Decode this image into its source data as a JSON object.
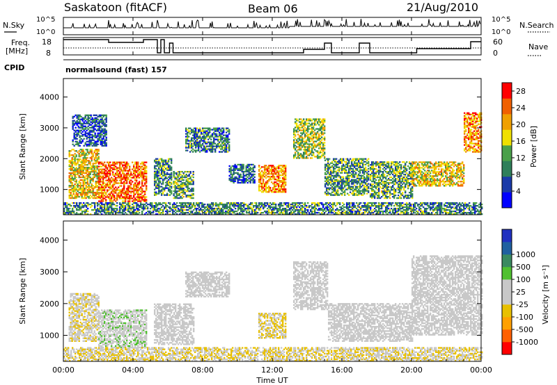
{
  "header": {
    "station": "Saskatoon (fitACF)",
    "beam": "Beam 06",
    "date": "21/Aug/2010"
  },
  "top_panels": {
    "nsky_label": "N.Sky",
    "nsky_ticks": [
      "10^5",
      "10^0"
    ],
    "nsearch_label": "N.Search",
    "nsearch_ticks": [
      "10^5",
      "10^0"
    ],
    "freq_label_line1": "Freq.",
    "freq_label_line2": "[MHz]",
    "freq_ticks": [
      "18",
      "8"
    ],
    "nave_label": "Nave",
    "nave_ticks": [
      "60",
      "0"
    ],
    "cpid_label": "CPID",
    "cpid_value": "normalsound (fast) 157"
  },
  "colors": {
    "power_scale": [
      "#0000ff",
      "#1a3aa8",
      "#2f7f5a",
      "#4aa04a",
      "#f0e000",
      "#f0a000",
      "#f06000",
      "#ff0000"
    ],
    "velocity_scale": [
      "#ff0000",
      "#ff6000",
      "#ffa000",
      "#e8c000",
      "#c8c8c8",
      "#c8c8c8",
      "#50c030",
      "#3a8a60",
      "#2060a0",
      "#2030c0"
    ],
    "ground_scatter": "#c8c8c8"
  },
  "chart_data": [
    {
      "type": "heatmap",
      "name": "power",
      "ylabel": "Slant Range [km]",
      "ytick_labels": [
        "1000",
        "2000",
        "3000",
        "4000"
      ],
      "ylim": [
        180,
        4600
      ],
      "colorbar_label": "Power [dB]",
      "colorbar_ticks": [
        "4",
        "8",
        "12",
        "16",
        "20",
        "24",
        "28"
      ],
      "colorbar_range": [
        0,
        30
      ],
      "patches": [
        {
          "t0": 0.3,
          "t1": 2.0,
          "r0": 700,
          "r1": 2300,
          "v": 18
        },
        {
          "t0": 2.0,
          "t1": 4.8,
          "r0": 600,
          "r1": 1900,
          "v": 24
        },
        {
          "t0": 0.5,
          "t1": 2.5,
          "r0": 2400,
          "r1": 3400,
          "v": 7
        },
        {
          "t0": 5.2,
          "t1": 6.2,
          "r0": 800,
          "r1": 2000,
          "v": 10
        },
        {
          "t0": 6.3,
          "t1": 7.5,
          "r0": 700,
          "r1": 1600,
          "v": 12
        },
        {
          "t0": 7.0,
          "t1": 9.5,
          "r0": 2200,
          "r1": 3000,
          "v": 9
        },
        {
          "t0": 9.5,
          "t1": 11.0,
          "r0": 1200,
          "r1": 1800,
          "v": 8
        },
        {
          "t0": 11.2,
          "t1": 12.8,
          "r0": 900,
          "r1": 1800,
          "v": 22
        },
        {
          "t0": 13.2,
          "t1": 15.0,
          "r0": 2000,
          "r1": 3300,
          "v": 15
        },
        {
          "t0": 15.0,
          "t1": 17.5,
          "r0": 800,
          "r1": 2000,
          "v": 11
        },
        {
          "t0": 17.6,
          "t1": 20.0,
          "r0": 700,
          "r1": 1900,
          "v": 12
        },
        {
          "t0": 20.0,
          "t1": 23.0,
          "r0": 1100,
          "r1": 1900,
          "v": 18
        },
        {
          "t0": 23.0,
          "t1": 24.0,
          "r0": 2200,
          "r1": 3500,
          "v": 22
        },
        {
          "t0": 0.0,
          "t1": 24.0,
          "r0": 180,
          "r1": 550,
          "v": 10
        }
      ]
    },
    {
      "type": "heatmap",
      "name": "velocity",
      "ylabel": "Slant Range [km]",
      "ytick_labels": [
        "1000",
        "2000",
        "3000",
        "4000"
      ],
      "ylim": [
        180,
        4600
      ],
      "colorbar_label": "Velocity [m s⁻¹]",
      "colorbar_ticks": [
        "-1000",
        "-500",
        "-100",
        "-25",
        "25",
        "100",
        "500",
        "1000"
      ],
      "colorbar_range": [
        -1200,
        1200
      ],
      "xlabel": "Time UT",
      "xtick_labels": [
        "00:00",
        "04:00",
        "08:00",
        "12:00",
        "16:00",
        "20:00",
        "00:00"
      ],
      "xlim": [
        0,
        24
      ],
      "patches": [
        {
          "t0": 0.3,
          "t1": 2.0,
          "r0": 800,
          "r1": 2300,
          "v": -150
        },
        {
          "t0": 2.0,
          "t1": 4.8,
          "r0": 600,
          "r1": 1800,
          "v": 120
        },
        {
          "t0": 5.2,
          "t1": 7.5,
          "r0": 700,
          "r1": 2000,
          "v": 0
        },
        {
          "t0": 7.0,
          "t1": 9.5,
          "r0": 2200,
          "r1": 3000,
          "v": 0
        },
        {
          "t0": 11.2,
          "t1": 12.8,
          "r0": 900,
          "r1": 1700,
          "v": -250
        },
        {
          "t0": 13.2,
          "t1": 15.2,
          "r0": 1800,
          "r1": 3300,
          "v": 0
        },
        {
          "t0": 15.2,
          "t1": 20.0,
          "r0": 800,
          "r1": 2000,
          "v": 0
        },
        {
          "t0": 20.0,
          "t1": 24.0,
          "r0": 1000,
          "r1": 3500,
          "v": 0
        },
        {
          "t0": 0.0,
          "t1": 24.0,
          "r0": 180,
          "r1": 600,
          "v": -200
        }
      ]
    }
  ]
}
